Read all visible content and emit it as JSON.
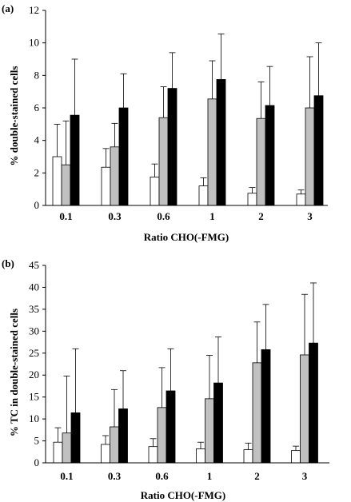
{
  "colors": {
    "series1": "#ffffff",
    "series2": "#c0c0c0",
    "series3": "#000000",
    "axis": "#000000"
  },
  "chart_data": [
    {
      "type": "bar",
      "panel_label": "(a)",
      "xlabel": "Ratio CHO(-FMG)",
      "ylabel": "% double-stained cells",
      "ylim": [
        0,
        12
      ],
      "yticks": [
        "0",
        "2",
        "4",
        "6",
        "8",
        "10",
        "12"
      ],
      "categories": [
        "0.1",
        "0.3",
        "0.6",
        "1",
        "2",
        "3"
      ],
      "series": [
        {
          "values": [
            3.0,
            2.35,
            1.75,
            1.2,
            0.75,
            0.7
          ],
          "errors": [
            2.0,
            1.15,
            0.8,
            0.5,
            0.35,
            0.25
          ]
        },
        {
          "values": [
            2.5,
            3.6,
            5.4,
            6.55,
            5.35,
            6.0
          ],
          "errors": [
            2.7,
            1.45,
            1.9,
            2.35,
            2.25,
            3.15
          ]
        },
        {
          "values": [
            5.55,
            6.0,
            7.2,
            7.75,
            6.15,
            6.75
          ],
          "errors": [
            3.45,
            2.1,
            2.2,
            2.8,
            2.4,
            3.25
          ]
        }
      ],
      "grid": false,
      "legend": "none"
    },
    {
      "type": "bar",
      "panel_label": "(b)",
      "xlabel": "Ratio CHO(-FMG)",
      "ylabel": "% TC in double-stained cells",
      "ylim": [
        0,
        45
      ],
      "yticks": [
        "0",
        "5",
        "10",
        "15",
        "20",
        "25",
        "30",
        "35",
        "40",
        "45"
      ],
      "categories": [
        "0.1",
        "0.3",
        "0.6",
        "1",
        "2",
        "3"
      ],
      "series": [
        {
          "values": [
            4.7,
            4.2,
            3.7,
            3.2,
            3.0,
            2.8
          ],
          "errors": [
            3.3,
            2.0,
            1.8,
            1.5,
            1.5,
            1.0
          ]
        },
        {
          "values": [
            6.8,
            8.2,
            12.6,
            14.6,
            22.8,
            24.6
          ],
          "errors": [
            13.0,
            8.5,
            9.1,
            9.9,
            9.3,
            13.8
          ]
        },
        {
          "values": [
            11.4,
            12.3,
            16.4,
            18.2,
            25.8,
            27.3
          ],
          "errors": [
            14.6,
            8.7,
            9.6,
            10.5,
            10.3,
            13.7
          ]
        }
      ],
      "grid": false,
      "legend": "none"
    }
  ]
}
